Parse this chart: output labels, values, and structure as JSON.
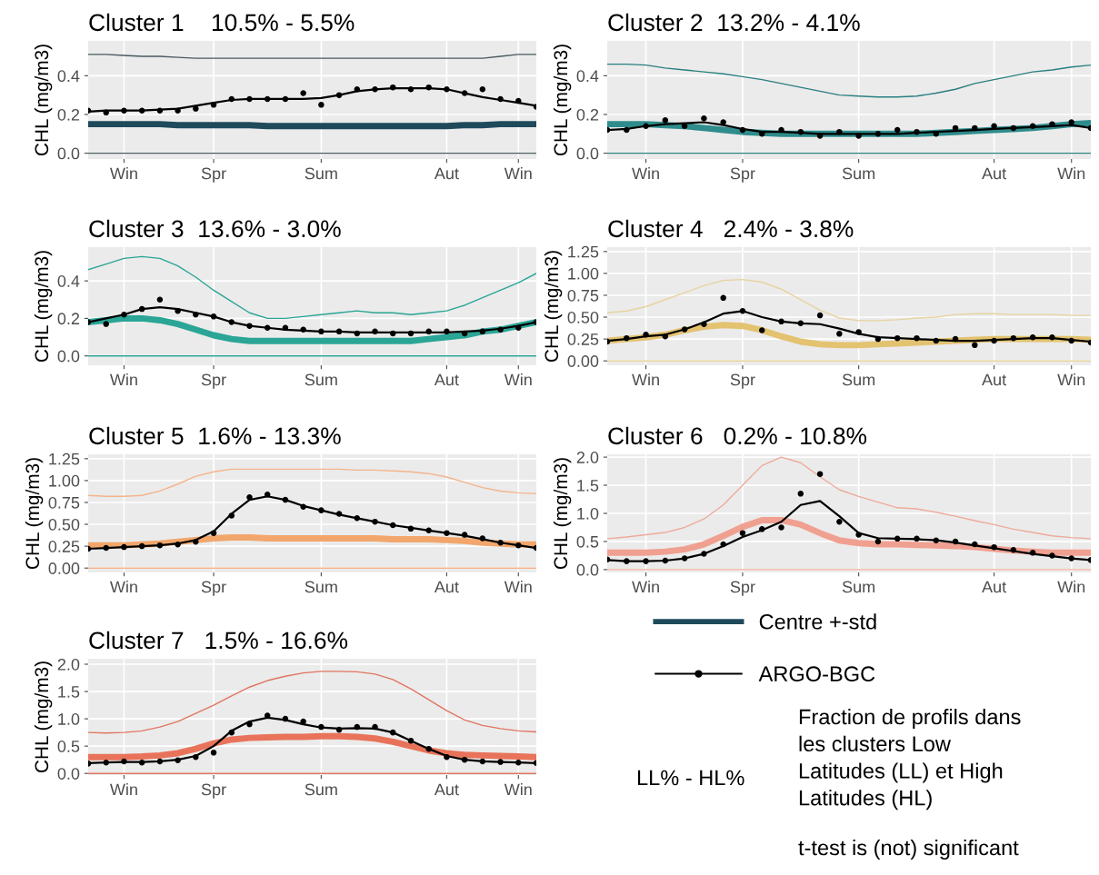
{
  "chart_data": [
    {
      "type": "line",
      "title": "Cluster 1    10.5% - 5.5%",
      "ylabel": "CHL (mg/m3)",
      "categories": [
        null,
        null,
        "Win",
        null,
        null,
        null,
        null,
        "Spr",
        null,
        null,
        null,
        null,
        null,
        "Sum",
        null,
        null,
        null,
        null,
        null,
        null,
        "Aut",
        null,
        null,
        null,
        "Win",
        null
      ],
      "ylim": [
        -0.03,
        0.58
      ],
      "yticks": [
        {
          "value": 0,
          "label": "0.0"
        },
        {
          "value": 0.2,
          "label": "0.2"
        },
        {
          "value": 0.4,
          "label": "0.4"
        }
      ],
      "grid": true,
      "legend": "bottom right",
      "series": [
        {
          "type": "line",
          "color": "#4a5a60",
          "values": [
            0.51,
            0.51,
            0.505,
            0.5,
            0.5,
            0.495,
            0.49,
            0.49,
            0.49,
            0.49,
            0.49,
            0.49,
            0.49,
            0.49,
            0.49,
            0.49,
            0.49,
            0.49,
            0.49,
            0.49,
            0.49,
            0.49,
            0.49,
            0.5,
            0.51,
            0.51
          ]
        },
        {
          "type": "line",
          "color": "#4a5a60",
          "values": [
            0,
            0,
            0,
            0,
            0,
            0,
            0,
            0,
            0,
            0,
            0,
            0,
            0,
            0,
            0,
            0,
            0,
            0,
            0,
            0,
            0,
            0,
            0,
            0,
            0,
            0
          ]
        },
        {
          "type": "line",
          "name": "Centre +-std",
          "color": "#1f4a5c",
          "values": [
            0.15,
            0.15,
            0.15,
            0.15,
            0.15,
            0.145,
            0.145,
            0.145,
            0.145,
            0.145,
            0.14,
            0.14,
            0.14,
            0.14,
            0.14,
            0.14,
            0.14,
            0.14,
            0.14,
            0.14,
            0.14,
            0.145,
            0.145,
            0.15,
            0.15,
            0.15
          ]
        },
        {
          "type": "line",
          "color": "#000000",
          "values": [
            0.215,
            0.22,
            0.22,
            0.22,
            0.225,
            0.23,
            0.245,
            0.26,
            0.275,
            0.28,
            0.28,
            0.28,
            0.28,
            0.285,
            0.3,
            0.32,
            0.33,
            0.335,
            0.335,
            0.335,
            0.33,
            0.31,
            0.29,
            0.275,
            0.26,
            0.245
          ]
        },
        {
          "type": "scatter",
          "name": "ARGO-BGC",
          "color": "#000000",
          "values": [
            0.22,
            0.21,
            0.22,
            0.22,
            0.22,
            0.22,
            0.23,
            0.25,
            0.28,
            0.28,
            0.28,
            0.28,
            0.31,
            0.25,
            0.3,
            0.33,
            0.33,
            0.34,
            0.33,
            0.34,
            0.33,
            0.31,
            0.33,
            0.28,
            0.27,
            0.24
          ]
        }
      ]
    },
    {
      "type": "line",
      "title": "Cluster 2  13.2% - 4.1%",
      "ylabel": "CHL (mg/m3)",
      "categories": [
        null,
        null,
        "Win",
        null,
        null,
        null,
        null,
        "Spr",
        null,
        null,
        null,
        null,
        null,
        "Sum",
        null,
        null,
        null,
        null,
        null,
        null,
        "Aut",
        null,
        null,
        null,
        "Win",
        null
      ],
      "ylim": [
        -0.03,
        0.58
      ],
      "yticks": [
        {
          "value": 0,
          "label": "0.0"
        },
        {
          "value": 0.2,
          "label": "0.2"
        },
        {
          "value": 0.4,
          "label": "0.4"
        }
      ],
      "grid": true,
      "series": [
        {
          "type": "line",
          "color": "#2a7f80",
          "values": [
            0.46,
            0.46,
            0.455,
            0.44,
            0.43,
            0.42,
            0.41,
            0.395,
            0.38,
            0.36,
            0.34,
            0.32,
            0.3,
            0.295,
            0.29,
            0.29,
            0.295,
            0.31,
            0.33,
            0.36,
            0.38,
            0.4,
            0.42,
            0.43,
            0.445,
            0.455
          ]
        },
        {
          "type": "line",
          "color": "#2a7f80",
          "values": [
            0,
            0,
            0,
            0,
            0,
            0,
            0,
            0,
            0,
            0,
            0,
            0,
            0,
            0,
            0,
            0,
            0,
            0,
            0,
            0,
            0,
            0,
            0,
            0,
            0,
            0
          ]
        },
        {
          "type": "line",
          "color": "#2f8c8c",
          "values": [
            0.15,
            0.15,
            0.15,
            0.145,
            0.14,
            0.13,
            0.12,
            0.11,
            0.105,
            0.1,
            0.1,
            0.1,
            0.1,
            0.1,
            0.1,
            0.1,
            0.1,
            0.105,
            0.11,
            0.115,
            0.12,
            0.125,
            0.13,
            0.14,
            0.15,
            0.155
          ]
        },
        {
          "type": "line",
          "color": "#000000",
          "values": [
            0.12,
            0.125,
            0.14,
            0.15,
            0.155,
            0.16,
            0.145,
            0.125,
            0.11,
            0.11,
            0.105,
            0.1,
            0.1,
            0.1,
            0.1,
            0.1,
            0.105,
            0.11,
            0.115,
            0.12,
            0.125,
            0.13,
            0.135,
            0.14,
            0.145,
            0.13
          ]
        },
        {
          "type": "scatter",
          "color": "#000000",
          "values": [
            0.12,
            0.12,
            0.14,
            0.17,
            0.14,
            0.18,
            0.16,
            0.12,
            0.1,
            0.12,
            0.11,
            0.09,
            0.11,
            0.09,
            0.1,
            0.12,
            0.11,
            0.1,
            0.13,
            0.13,
            0.14,
            0.13,
            0.14,
            0.15,
            0.16,
            0.13
          ]
        }
      ]
    },
    {
      "type": "line",
      "title": "Cluster 3  13.6% - 3.0%",
      "ylabel": "CHL (mg/m3)",
      "categories": [
        null,
        null,
        "Win",
        null,
        null,
        null,
        null,
        "Spr",
        null,
        null,
        null,
        null,
        null,
        "Sum",
        null,
        null,
        null,
        null,
        null,
        null,
        "Aut",
        null,
        null,
        null,
        "Win",
        null
      ],
      "ylim": [
        -0.05,
        0.58
      ],
      "yticks": [
        {
          "value": 0,
          "label": "0.0"
        },
        {
          "value": 0.2,
          "label": "0.2"
        },
        {
          "value": 0.4,
          "label": "0.4"
        }
      ],
      "grid": true,
      "series": [
        {
          "type": "line",
          "color": "#2aa596",
          "values": [
            0.46,
            0.49,
            0.52,
            0.53,
            0.52,
            0.48,
            0.42,
            0.35,
            0.29,
            0.23,
            0.2,
            0.2,
            0.21,
            0.22,
            0.23,
            0.24,
            0.23,
            0.23,
            0.22,
            0.23,
            0.24,
            0.27,
            0.31,
            0.35,
            0.39,
            0.44
          ]
        },
        {
          "type": "line",
          "color": "#2aa596",
          "values": [
            0,
            0,
            0,
            0,
            0,
            0,
            0,
            0,
            0,
            0,
            0,
            0,
            0,
            0,
            0,
            0,
            0,
            0,
            0,
            0,
            0,
            0,
            0,
            0,
            0,
            0
          ]
        },
        {
          "type": "line",
          "color": "#2aa596",
          "values": [
            0.18,
            0.19,
            0.2,
            0.2,
            0.19,
            0.17,
            0.14,
            0.11,
            0.09,
            0.08,
            0.08,
            0.08,
            0.08,
            0.08,
            0.08,
            0.08,
            0.08,
            0.08,
            0.08,
            0.09,
            0.1,
            0.11,
            0.13,
            0.14,
            0.16,
            0.18
          ]
        },
        {
          "type": "line",
          "color": "#000000",
          "values": [
            0.18,
            0.2,
            0.22,
            0.25,
            0.26,
            0.25,
            0.23,
            0.21,
            0.18,
            0.16,
            0.15,
            0.14,
            0.135,
            0.13,
            0.13,
            0.125,
            0.125,
            0.125,
            0.125,
            0.125,
            0.125,
            0.13,
            0.135,
            0.145,
            0.16,
            0.18
          ]
        },
        {
          "type": "scatter",
          "color": "#000000",
          "values": [
            0.18,
            0.17,
            0.22,
            0.25,
            0.3,
            0.24,
            0.22,
            0.21,
            0.18,
            0.16,
            0.15,
            0.15,
            0.14,
            0.13,
            0.13,
            0.12,
            0.13,
            0.12,
            0.12,
            0.13,
            0.13,
            0.12,
            0.13,
            0.14,
            0.15,
            0.18
          ]
        }
      ]
    },
    {
      "type": "line",
      "title": "Cluster 4   2.4% - 3.8%",
      "ylabel": "CHL (mg/m3)",
      "categories": [
        null,
        null,
        "Win",
        null,
        null,
        null,
        null,
        "Spr",
        null,
        null,
        null,
        null,
        null,
        "Sum",
        null,
        null,
        null,
        null,
        null,
        null,
        "Aut",
        null,
        null,
        null,
        "Win",
        null
      ],
      "ylim": [
        -0.05,
        1.3
      ],
      "yticks": [
        {
          "value": 0,
          "label": "0.00"
        },
        {
          "value": 0.25,
          "label": "0.25"
        },
        {
          "value": 0.5,
          "label": "0.50"
        },
        {
          "value": 0.75,
          "label": "0.75"
        },
        {
          "value": 1,
          "label": "1.00"
        },
        {
          "value": 1.25,
          "label": "1.25"
        }
      ],
      "grid": true,
      "series": [
        {
          "type": "line",
          "color": "#e8d3a0",
          "values": [
            0.55,
            0.57,
            0.62,
            0.7,
            0.78,
            0.86,
            0.92,
            0.93,
            0.9,
            0.82,
            0.7,
            0.58,
            0.49,
            0.46,
            0.46,
            0.47,
            0.49,
            0.5,
            0.53,
            0.54,
            0.54,
            0.53,
            0.53,
            0.53,
            0.52,
            0.52
          ]
        },
        {
          "type": "line",
          "color": "#e8d3a0",
          "values": [
            0,
            0,
            0,
            0,
            0,
            0,
            0,
            0,
            0,
            0,
            0,
            0,
            0,
            0,
            0,
            0,
            0,
            0,
            0,
            0,
            0,
            0,
            0,
            0,
            0,
            0
          ]
        },
        {
          "type": "line",
          "color": "#e3c270",
          "values": [
            0.23,
            0.25,
            0.27,
            0.3,
            0.35,
            0.39,
            0.41,
            0.4,
            0.35,
            0.28,
            0.22,
            0.19,
            0.18,
            0.18,
            0.19,
            0.2,
            0.21,
            0.22,
            0.23,
            0.24,
            0.25,
            0.25,
            0.25,
            0.25,
            0.25,
            0.24
          ]
        },
        {
          "type": "line",
          "color": "#000000",
          "values": [
            0.23,
            0.25,
            0.28,
            0.3,
            0.36,
            0.44,
            0.54,
            0.57,
            0.5,
            0.45,
            0.43,
            0.42,
            0.37,
            0.31,
            0.27,
            0.26,
            0.25,
            0.24,
            0.23,
            0.23,
            0.24,
            0.25,
            0.26,
            0.26,
            0.24,
            0.22
          ]
        },
        {
          "type": "scatter",
          "color": "#000000",
          "values": [
            0.22,
            0.26,
            0.3,
            0.28,
            0.36,
            0.42,
            0.72,
            0.57,
            0.35,
            0.45,
            0.43,
            0.52,
            0.31,
            0.33,
            0.25,
            0.26,
            0.26,
            0.23,
            0.25,
            0.18,
            0.23,
            0.26,
            0.27,
            0.27,
            0.23,
            0.21
          ]
        }
      ]
    },
    {
      "type": "line",
      "title": "Cluster 5  1.6% - 13.3%",
      "ylabel": "CHL (mg/m3)",
      "categories": [
        null,
        null,
        "Win",
        null,
        null,
        null,
        null,
        "Spr",
        null,
        null,
        null,
        null,
        null,
        "Sum",
        null,
        null,
        null,
        null,
        null,
        null,
        "Aut",
        null,
        null,
        null,
        "Win",
        null
      ],
      "ylim": [
        -0.05,
        1.3
      ],
      "yticks": [
        {
          "value": 0,
          "label": "0.00"
        },
        {
          "value": 0.25,
          "label": "0.25"
        },
        {
          "value": 0.5,
          "label": "0.50"
        },
        {
          "value": 0.75,
          "label": "0.75"
        },
        {
          "value": 1,
          "label": "1.00"
        },
        {
          "value": 1.25,
          "label": "1.25"
        }
      ],
      "grid": true,
      "series": [
        {
          "type": "line",
          "color": "#f4b48c",
          "values": [
            0.83,
            0.82,
            0.82,
            0.83,
            0.88,
            0.96,
            1.05,
            1.1,
            1.13,
            1.13,
            1.13,
            1.13,
            1.13,
            1.13,
            1.13,
            1.12,
            1.12,
            1.11,
            1.1,
            1.08,
            1.04,
            0.98,
            0.92,
            0.88,
            0.86,
            0.85
          ]
        },
        {
          "type": "line",
          "color": "#f4b48c",
          "values": [
            0,
            0,
            0,
            0,
            0,
            0,
            0,
            0,
            0,
            0,
            0,
            0,
            0,
            0,
            0,
            0,
            0,
            0,
            0,
            0,
            0,
            0,
            0,
            0,
            0,
            0
          ]
        },
        {
          "type": "line",
          "color": "#f2a66b",
          "values": [
            0.26,
            0.26,
            0.26,
            0.27,
            0.28,
            0.3,
            0.32,
            0.34,
            0.35,
            0.35,
            0.34,
            0.34,
            0.34,
            0.34,
            0.34,
            0.34,
            0.34,
            0.33,
            0.33,
            0.33,
            0.32,
            0.31,
            0.29,
            0.28,
            0.27,
            0.27
          ]
        },
        {
          "type": "line",
          "color": "#000000",
          "values": [
            0.22,
            0.23,
            0.24,
            0.25,
            0.26,
            0.28,
            0.32,
            0.42,
            0.62,
            0.78,
            0.82,
            0.78,
            0.71,
            0.66,
            0.61,
            0.57,
            0.53,
            0.49,
            0.46,
            0.43,
            0.4,
            0.37,
            0.33,
            0.29,
            0.26,
            0.23
          ]
        },
        {
          "type": "scatter",
          "color": "#000000",
          "values": [
            0.22,
            0.23,
            0.24,
            0.25,
            0.26,
            0.27,
            0.3,
            0.4,
            0.6,
            0.81,
            0.84,
            0.78,
            0.7,
            0.66,
            0.62,
            0.57,
            0.53,
            0.49,
            0.45,
            0.43,
            0.4,
            0.38,
            0.34,
            0.29,
            0.26,
            0.23
          ]
        }
      ]
    },
    {
      "type": "line",
      "title": "Cluster 6   0.2% - 10.8%",
      "ylabel": "CHL (mg/m3)",
      "categories": [
        null,
        null,
        "Win",
        null,
        null,
        null,
        null,
        "Spr",
        null,
        null,
        null,
        null,
        null,
        "Sum",
        null,
        null,
        null,
        null,
        null,
        null,
        "Aut",
        null,
        null,
        null,
        "Win",
        null
      ],
      "ylim": [
        -0.05,
        2.05
      ],
      "yticks": [
        {
          "value": 0,
          "label": "0.0"
        },
        {
          "value": 0.5,
          "label": "0.5"
        },
        {
          "value": 1,
          "label": "1.0"
        },
        {
          "value": 1.5,
          "label": "1.5"
        },
        {
          "value": 2,
          "label": "2.0"
        }
      ],
      "grid": true,
      "series": [
        {
          "type": "line",
          "color": "#eeaa99",
          "values": [
            0.55,
            0.58,
            0.62,
            0.66,
            0.75,
            0.9,
            1.15,
            1.5,
            1.85,
            2.0,
            1.9,
            1.65,
            1.42,
            1.3,
            1.2,
            1.1,
            1.08,
            1.02,
            0.95,
            0.87,
            0.8,
            0.72,
            0.66,
            0.6,
            0.57,
            0.55
          ]
        },
        {
          "type": "line",
          "color": "#eeaa99",
          "values": [
            0,
            0,
            0,
            0,
            0,
            0,
            0,
            0,
            0,
            0,
            0,
            0,
            0,
            0,
            0,
            0,
            0,
            0,
            0,
            0,
            0,
            0,
            0,
            0,
            0,
            0
          ]
        },
        {
          "type": "line",
          "color": "#f0a090",
          "values": [
            0.3,
            0.3,
            0.3,
            0.32,
            0.36,
            0.45,
            0.6,
            0.76,
            0.88,
            0.88,
            0.8,
            0.65,
            0.52,
            0.47,
            0.45,
            0.45,
            0.44,
            0.43,
            0.42,
            0.4,
            0.37,
            0.34,
            0.32,
            0.3,
            0.3,
            0.3
          ]
        },
        {
          "type": "line",
          "color": "#000000",
          "values": [
            0.17,
            0.15,
            0.15,
            0.16,
            0.2,
            0.28,
            0.42,
            0.58,
            0.7,
            0.85,
            1.15,
            1.22,
            0.95,
            0.65,
            0.56,
            0.55,
            0.54,
            0.52,
            0.48,
            0.43,
            0.38,
            0.33,
            0.28,
            0.24,
            0.2,
            0.17
          ]
        },
        {
          "type": "scatter",
          "color": "#000000",
          "values": [
            0.18,
            0.15,
            0.15,
            0.16,
            0.2,
            0.28,
            0.45,
            0.65,
            0.72,
            0.75,
            1.35,
            1.7,
            0.85,
            0.62,
            0.5,
            0.55,
            0.55,
            0.52,
            0.5,
            0.45,
            0.4,
            0.35,
            0.3,
            0.25,
            0.2,
            0.17
          ]
        }
      ]
    },
    {
      "type": "line",
      "title": "Cluster 7   1.5% - 16.6%",
      "ylabel": "CHL (mg/m3)",
      "categories": [
        null,
        null,
        "Win",
        null,
        null,
        null,
        null,
        "Spr",
        null,
        null,
        null,
        null,
        null,
        "Sum",
        null,
        null,
        null,
        null,
        null,
        null,
        "Aut",
        null,
        null,
        null,
        "Win",
        null
      ],
      "ylim": [
        -0.03,
        2.1
      ],
      "yticks": [
        {
          "value": 0,
          "label": "0.0"
        },
        {
          "value": 0.5,
          "label": "0.5"
        },
        {
          "value": 1,
          "label": "1.0"
        },
        {
          "value": 1.5,
          "label": "1.5"
        },
        {
          "value": 2,
          "label": "2.0"
        }
      ],
      "grid": true,
      "series": [
        {
          "type": "line",
          "color": "#e07560",
          "values": [
            0.75,
            0.74,
            0.75,
            0.78,
            0.85,
            0.95,
            1.1,
            1.25,
            1.42,
            1.58,
            1.7,
            1.78,
            1.84,
            1.87,
            1.87,
            1.86,
            1.82,
            1.72,
            1.55,
            1.35,
            1.15,
            0.98,
            0.88,
            0.82,
            0.78,
            0.76
          ]
        },
        {
          "type": "line",
          "color": "#e07560",
          "values": [
            0,
            0,
            0,
            0,
            0,
            0,
            0,
            0,
            0,
            0,
            0,
            0,
            0,
            0,
            0,
            0,
            0,
            0,
            0,
            0,
            0,
            0,
            0,
            0,
            0,
            0
          ]
        },
        {
          "type": "line",
          "color": "#e8735a",
          "values": [
            0.3,
            0.3,
            0.3,
            0.31,
            0.33,
            0.37,
            0.45,
            0.55,
            0.62,
            0.65,
            0.66,
            0.67,
            0.67,
            0.68,
            0.68,
            0.67,
            0.64,
            0.58,
            0.5,
            0.42,
            0.37,
            0.34,
            0.33,
            0.32,
            0.31,
            0.3
          ]
        },
        {
          "type": "line",
          "color": "#000000",
          "values": [
            0.19,
            0.2,
            0.21,
            0.21,
            0.22,
            0.25,
            0.32,
            0.5,
            0.78,
            0.95,
            1.02,
            0.98,
            0.9,
            0.84,
            0.82,
            0.83,
            0.82,
            0.75,
            0.6,
            0.45,
            0.32,
            0.25,
            0.22,
            0.21,
            0.2,
            0.19
          ]
        },
        {
          "type": "scatter",
          "color": "#000000",
          "values": [
            0.18,
            0.2,
            0.22,
            0.2,
            0.22,
            0.24,
            0.3,
            0.38,
            0.75,
            0.9,
            1.06,
            1.0,
            0.95,
            0.85,
            0.8,
            0.85,
            0.85,
            0.75,
            0.6,
            0.45,
            0.3,
            0.25,
            0.22,
            0.21,
            0.2,
            0.19
          ]
        }
      ]
    },
    {
      "type": "other",
      "annotations": [
        "LL% - HL%",
        "Fraction de profils dans\nles clusters Low\nLatitudes (LL) et High\nLatitudes (HL)",
        "t-test is (not) significant"
      ]
    }
  ]
}
